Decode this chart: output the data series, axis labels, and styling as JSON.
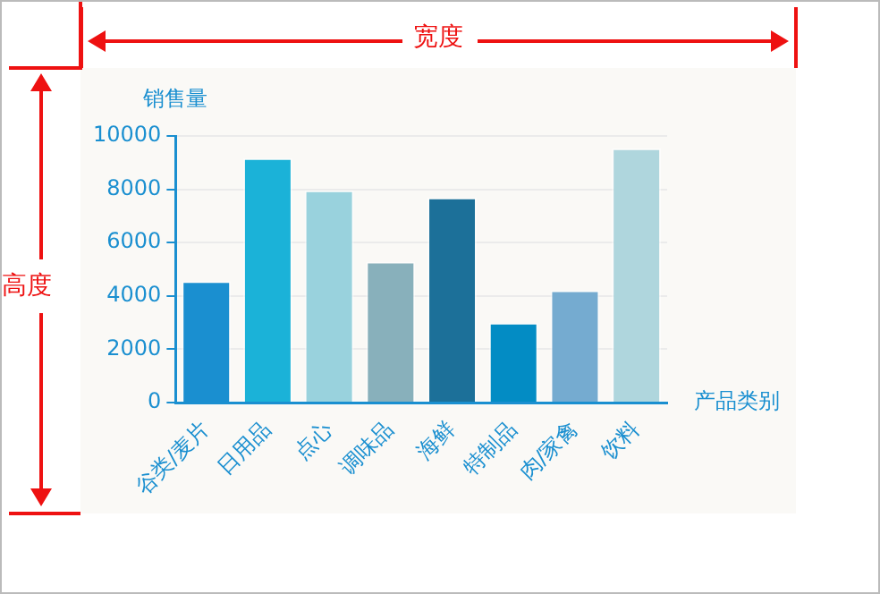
{
  "chart_data": {
    "type": "bar",
    "ylabel": "销售量",
    "xlabel": "产品类别",
    "categories": [
      "谷类/麦片",
      "日用品",
      "点心",
      "调味品",
      "海鲜",
      "特制品",
      "肉/家禽",
      "饮料"
    ],
    "values": [
      4560,
      9170,
      7960,
      5290,
      7690,
      3000,
      4210,
      9540
    ],
    "colors": [
      "#1a8fd0",
      "#1bb2d8",
      "#99d2dd",
      "#88b0bb",
      "#1c7099",
      "#038cc4",
      "#75abd0",
      "#afd6dd"
    ],
    "ylim": [
      0,
      10000
    ],
    "yticks": [
      0,
      2000,
      4000,
      6000,
      8000,
      10000
    ],
    "grid": "y",
    "legend": false,
    "annotations": [
      "宽度",
      "高度"
    ]
  }
}
